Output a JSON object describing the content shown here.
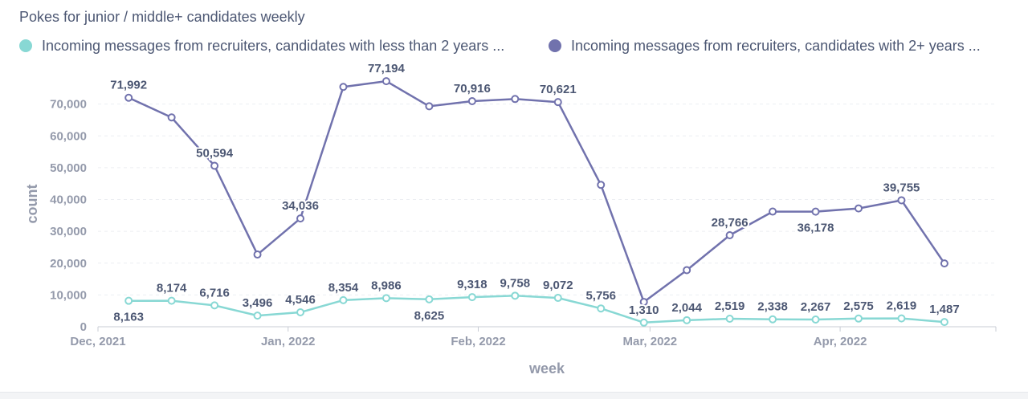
{
  "chart_data": {
    "type": "line",
    "title": "Pokes for junior / middle+ candidates weekly",
    "xlabel": "week",
    "ylabel": "count",
    "ylim": [
      0,
      80000
    ],
    "yticks": [
      0,
      10000,
      20000,
      30000,
      40000,
      50000,
      60000,
      70000
    ],
    "ytick_labels": [
      "0",
      "10,000",
      "20,000",
      "30,000",
      "40,000",
      "50,000",
      "60,000",
      "70,000"
    ],
    "xtick_labels": [
      "Dec, 2021",
      "Jan, 2022",
      "Feb, 2022",
      "Mar, 2022",
      "Apr, 2022"
    ],
    "x": [
      "2021-12-06",
      "2021-12-13",
      "2021-12-20",
      "2021-12-27",
      "2022-01-03",
      "2022-01-10",
      "2022-01-17",
      "2022-01-24",
      "2022-01-31",
      "2022-02-07",
      "2022-02-14",
      "2022-02-21",
      "2022-02-28",
      "2022-03-07",
      "2022-03-14",
      "2022-03-21",
      "2022-03-28",
      "2022-04-04",
      "2022-04-11",
      "2022-04-18"
    ],
    "grid": true,
    "legend_position": "top-left",
    "series": [
      {
        "name": "Incoming messages from recruiters, candidates with less than 2 years ...",
        "color": "#88d8d4",
        "values": [
          8163,
          8174,
          6716,
          3496,
          4546,
          8354,
          8986,
          8625,
          9318,
          9758,
          9072,
          5756,
          1310,
          2044,
          2519,
          2338,
          2267,
          2575,
          2619,
          1487
        ],
        "labels": [
          "8,163",
          "8,174",
          "6,716",
          "3,496",
          "4,546",
          "8,354",
          "8,986",
          "8,625",
          "9,318",
          "9,758",
          "9,072",
          "5,756",
          "1,310",
          "2,044",
          "2,519",
          "2,338",
          "2,267",
          "2,575",
          "2,619",
          "1,487"
        ],
        "label_below": [
          true,
          false,
          false,
          false,
          false,
          false,
          false,
          true,
          false,
          false,
          false,
          false,
          false,
          false,
          false,
          false,
          false,
          false,
          false,
          false
        ]
      },
      {
        "name": "Incoming messages from recruiters, candidates with 2+ years ...",
        "color": "#7172ad",
        "values": [
          71992,
          65800,
          50594,
          22700,
          34036,
          75400,
          77194,
          69300,
          70916,
          71600,
          70621,
          44600,
          7800,
          17800,
          28766,
          36200,
          36178,
          37200,
          39755,
          19900
        ],
        "labels": [
          "71,992",
          "",
          "50,594",
          "",
          "34,036",
          "",
          "77,194",
          "",
          "70,916",
          "",
          "70,621",
          "",
          "",
          "",
          "28,766",
          "",
          "36,178",
          "",
          "39,755",
          ""
        ],
        "label_below": [
          false,
          false,
          false,
          false,
          false,
          false,
          false,
          false,
          false,
          false,
          false,
          false,
          false,
          false,
          false,
          false,
          true,
          false,
          false,
          false
        ]
      }
    ]
  }
}
